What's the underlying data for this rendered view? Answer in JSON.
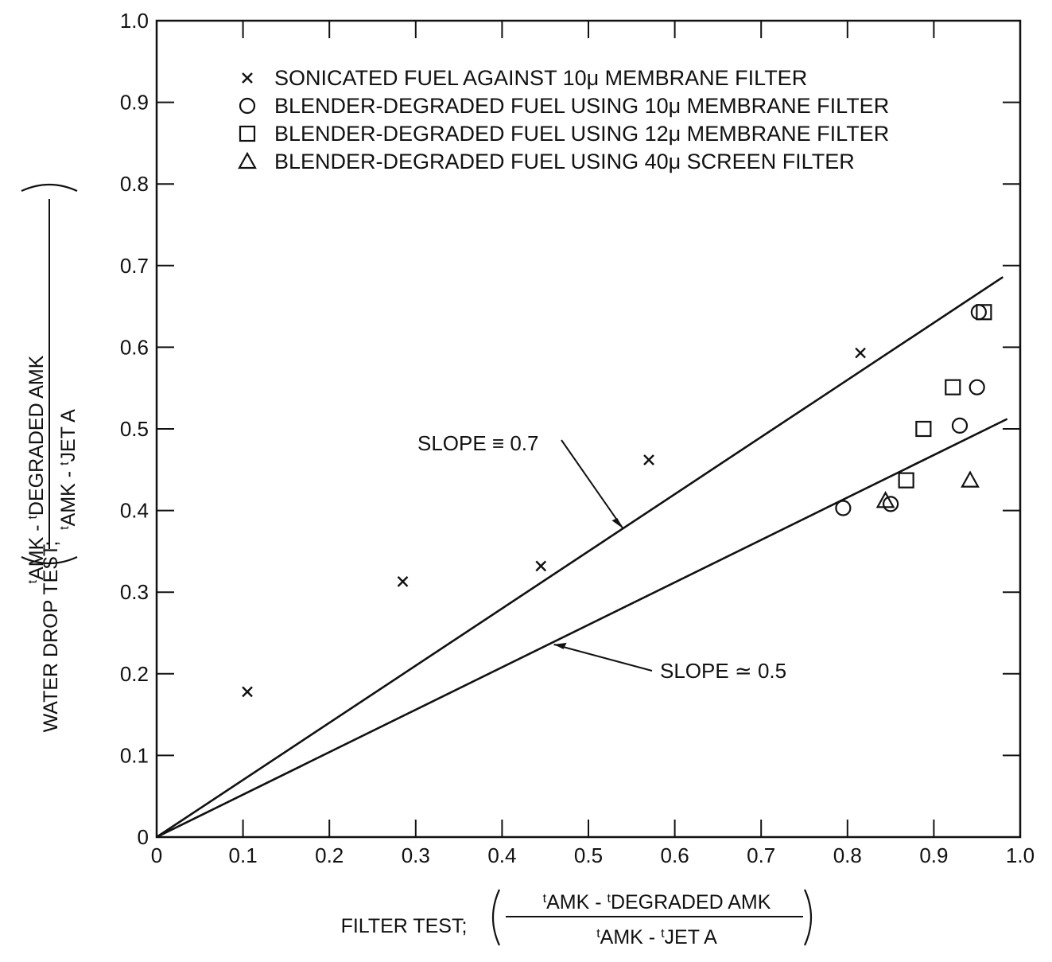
{
  "chart_data": {
    "type": "scatter",
    "xlim": [
      0,
      1.0
    ],
    "ylim": [
      0,
      1.0
    ],
    "x_ticks": [
      "0",
      "0.1",
      "0.2",
      "0.3",
      "0.4",
      "0.5",
      "0.6",
      "0.7",
      "0.8",
      "0.9",
      "1.0"
    ],
    "y_ticks": [
      "0",
      "0.1",
      "0.2",
      "0.3",
      "0.4",
      "0.5",
      "0.6",
      "0.7",
      "0.8",
      "0.9",
      "1.0"
    ],
    "xlabel": {
      "lead": "FILTER TEST;",
      "numerator": [
        "t",
        "AMK",
        " - ",
        "t",
        "DEGRADED AMK"
      ],
      "denominator": [
        "t",
        "AMK",
        " - ",
        "t",
        "JET A"
      ]
    },
    "ylabel": {
      "lead": "WATER DROP TEST;",
      "numerator": [
        "t",
        "AMK",
        " - ",
        "t",
        "DEGRADED AMK"
      ],
      "denominator": [
        "t",
        "AMK",
        " - ",
        "t",
        "JET A"
      ]
    },
    "grid": false,
    "legend_position": "top",
    "series": [
      {
        "name": "SONICATED FUEL AGAINST 10μ MEMBRANE FILTER",
        "marker": "x",
        "points": [
          [
            0.105,
            0.178
          ],
          [
            0.285,
            0.313
          ],
          [
            0.445,
            0.332
          ],
          [
            0.57,
            0.462
          ],
          [
            0.815,
            0.593
          ]
        ]
      },
      {
        "name": "BLENDER-DEGRADED FUEL USING 10μ MEMBRANE FILTER",
        "marker": "circle",
        "points": [
          [
            0.795,
            0.403
          ],
          [
            0.85,
            0.408
          ],
          [
            0.93,
            0.504
          ],
          [
            0.95,
            0.551
          ],
          [
            0.952,
            0.643
          ]
        ]
      },
      {
        "name": "BLENDER-DEGRADED FUEL USING 12μ MEMBRANE FILTER",
        "marker": "square",
        "points": [
          [
            0.868,
            0.437
          ],
          [
            0.888,
            0.5
          ],
          [
            0.922,
            0.551
          ],
          [
            0.958,
            0.643
          ]
        ]
      },
      {
        "name": "BLENDER-DEGRADED FUEL USING 40μ SCREEN FILTER",
        "marker": "triangle",
        "points": [
          [
            0.844,
            0.412
          ],
          [
            0.942,
            0.437
          ]
        ]
      }
    ],
    "lines": [
      {
        "label": "SLOPE ≡ 0.7",
        "slope": 0.7,
        "x": [
          0,
          0.98
        ]
      },
      {
        "label": "SLOPE ≃ 0.5",
        "slope": 0.52,
        "x": [
          0,
          0.985
        ]
      }
    ],
    "annotations": [
      {
        "text": "SLOPE ≡ 0.7",
        "arrow_to": [
          0.54,
          0.378
        ]
      },
      {
        "text": "SLOPE ≃ 0.5",
        "arrow_to": [
          0.46,
          0.236
        ]
      }
    ]
  }
}
